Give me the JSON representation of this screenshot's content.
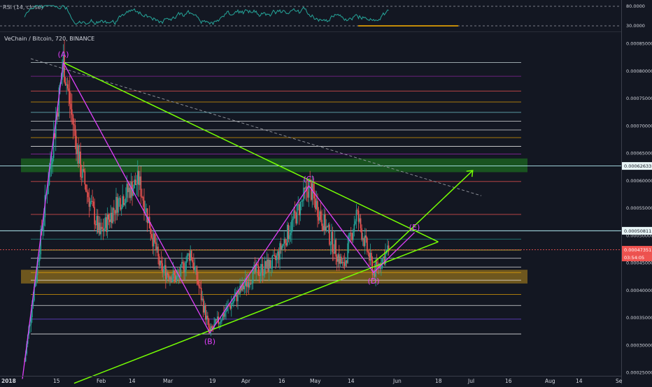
{
  "rsi": {
    "label": "RSI (14, close)",
    "levels": [
      "80.0000",
      "30.0000"
    ]
  },
  "main": {
    "title": "VeChain / Bitcoin, 720, BINANCE",
    "price_axis_labels": [
      "0.00085000",
      "0.00080000",
      "0.00075000",
      "0.00070000",
      "0.00065000",
      "0.00060000",
      "0.00055000",
      "0.00050000",
      "0.00045000",
      "0.00040000",
      "0.00035000",
      "0.00030000",
      "0.00025000"
    ],
    "tags": [
      {
        "text": "0.00062633",
        "fill": "#e8f5f7",
        "color": "#131722"
      },
      {
        "text": "0.00050811",
        "fill": "#e8f5f7",
        "color": "#131722"
      },
      {
        "text": "0.00047351",
        "fill": "#ef5350",
        "color": "#ffffff"
      },
      {
        "text": "03:54:05",
        "fill": "#ef5350",
        "color": "#ffffff"
      }
    ],
    "time_labels": [
      "2018",
      "15",
      "Feb",
      "14",
      "Mar",
      "19",
      "Apr",
      "16",
      "May",
      "14",
      "Jun",
      "18",
      "Jul",
      "16",
      "Aug",
      "14",
      "Se"
    ],
    "wave_labels": [
      "(A)",
      "(B)",
      "(C)",
      "(D)",
      "(E)"
    ]
  },
  "colors": {
    "background": "#131722",
    "bull": "#26a69a",
    "bear": "#ef5350",
    "triangle": "#76ff03",
    "abcde": "#e040fb",
    "wave_text": "#e040fb",
    "demand_zone": "#8d6e1e",
    "supply_zone": "#1b5e20"
  },
  "chart_data": {
    "type": "candlestick",
    "title": "VeChain / Bitcoin, 720, BINANCE",
    "y_unit": "BTC",
    "ylim": [
      0.00024,
      0.00086
    ],
    "x_range": [
      "2018-01-01",
      "2018-09-07"
    ],
    "wave_points": [
      {
        "label": "(A)",
        "date": "2018-01-20",
        "price": 0.000815
      },
      {
        "label": "(B)",
        "date": "2018-03-29",
        "price": 0.000322
      },
      {
        "label": "(C)",
        "date": "2018-05-14",
        "price": 0.00059
      },
      {
        "label": "(D)",
        "date": "2018-06-13",
        "price": 0.000432
      },
      {
        "label": "(E)",
        "date": "2018-07-02",
        "price": 0.000505
      }
    ],
    "current_price": 0.00047351,
    "marked_levels": [
      0.00062633,
      0.00050811
    ],
    "zones": [
      {
        "name": "supply",
        "low": 0.000615,
        "high": 0.00064
      },
      {
        "name": "demand",
        "low": 0.000412,
        "high": 0.000437
      }
    ]
  }
}
